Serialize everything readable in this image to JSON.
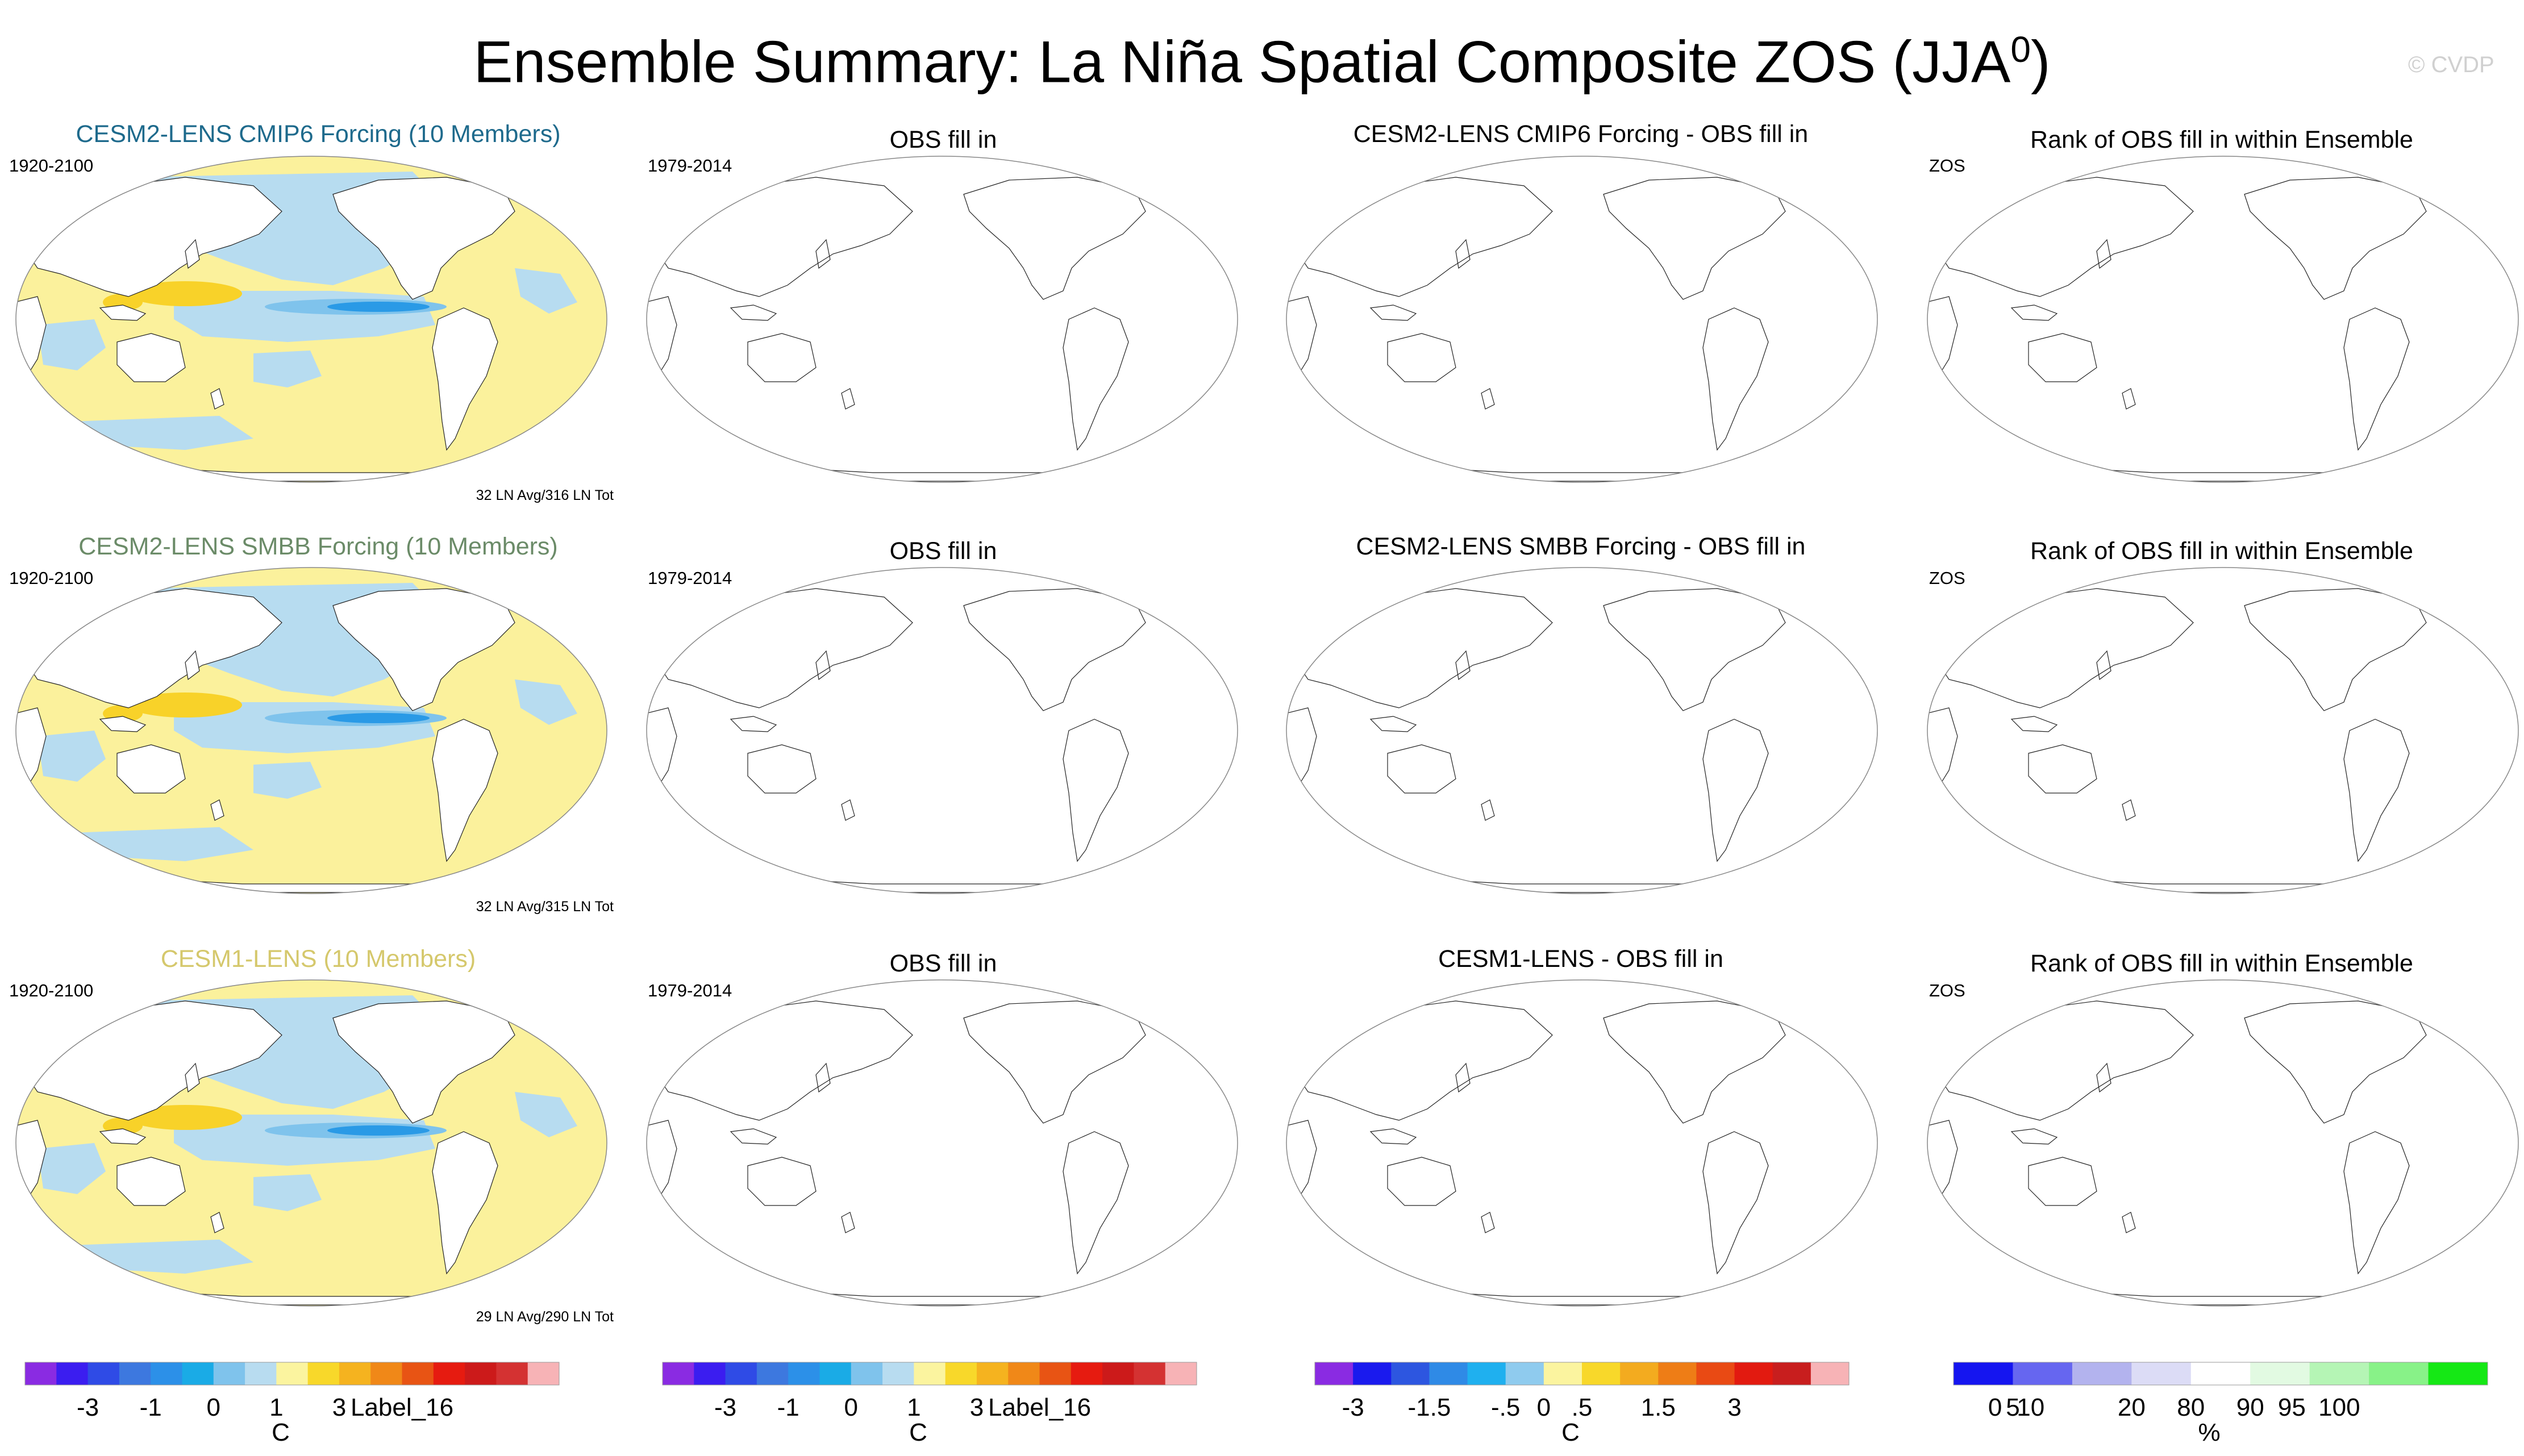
{
  "title": {
    "main": "Ensemble Summary: La Niña Spatial Composite ZOS (JJA",
    "sup": "0",
    "close": ")"
  },
  "watermark": "© CVDP",
  "colors": {
    "land": "#ffffff",
    "ocean_blue": "#b7dcf0",
    "ocean_yellow": "#fbf19c",
    "warm": "#f8d229",
    "deep_blue": "#2a9ae6",
    "coast": "#222222",
    "title_row1": "#1e6a8c",
    "title_row2": "#6b8b68",
    "title_row3": "#d5c86c"
  },
  "rows": [
    {
      "model_title": "CESM2-LENS CMIP6 Forcing (10 Members)",
      "model_period": "1920-2100",
      "model_counts": "32 LN Avg/316 LN Tot",
      "obs_title": "OBS fill in",
      "obs_period": "1979-2014",
      "diff_title": "CESM2-LENS CMIP6 Forcing - OBS fill in",
      "rank_title": "Rank of OBS fill in within Ensemble",
      "rank_label": "ZOS"
    },
    {
      "model_title": "CESM2-LENS SMBB Forcing (10 Members)",
      "model_period": "1920-2100",
      "model_counts": "32 LN Avg/315 LN Tot",
      "obs_title": "OBS fill in",
      "obs_period": "1979-2014",
      "diff_title": "CESM2-LENS SMBB Forcing - OBS fill in",
      "rank_title": "Rank of OBS fill in within Ensemble",
      "rank_label": "ZOS"
    },
    {
      "model_title": "CESM1-LENS (10 Members)",
      "model_period": "1920-2100",
      "model_counts": "29 LN Avg/290 LN Tot",
      "obs_title": "OBS fill in",
      "obs_period": "1979-2014",
      "diff_title": "CESM1-LENS - OBS fill in",
      "rank_title": "Rank of OBS fill in within Ensemble",
      "rank_label": "ZOS"
    }
  ],
  "chart_data": {
    "type": "heatmap",
    "description_units": "C",
    "colorbars": [
      {
        "name": "model",
        "colors": [
          "#8a2be2",
          "#3b1df0",
          "#2f4be6",
          "#3d78df",
          "#2c90e8",
          "#1aabe6",
          "#7fc3ec",
          "#b8dcf0",
          "#fbf49f",
          "#f8d82a",
          "#f5b31f",
          "#f08818",
          "#e85414",
          "#e61b10",
          "#cc1a1a",
          "#d43232",
          "#f7b3b6"
        ],
        "tick_labels": [
          "-3",
          "-1",
          "0",
          "1",
          "3",
          "Label_16"
        ],
        "tick_bins": [
          2,
          4,
          6,
          8,
          10,
          12
        ],
        "unit": "C"
      },
      {
        "name": "obs",
        "colors": [
          "#8a2be2",
          "#3b1df0",
          "#2f4be6",
          "#3d78df",
          "#2c90e8",
          "#1aabe6",
          "#7fc3ec",
          "#b8dcf0",
          "#fbf49f",
          "#f8d82a",
          "#f5b31f",
          "#f08818",
          "#e85414",
          "#e61b10",
          "#cc1a1a",
          "#d43232",
          "#f7b3b6"
        ],
        "tick_labels": [
          "-3",
          "-1",
          "0",
          "1",
          "3",
          "Label_16"
        ],
        "tick_bins": [
          2,
          4,
          6,
          8,
          10,
          12
        ],
        "unit": "C"
      },
      {
        "name": "difference",
        "colors": [
          "#8a2be2",
          "#1a1aee",
          "#2d56e0",
          "#2f8ae6",
          "#1fb0ef",
          "#8fcbee",
          "#fbf49f",
          "#f8d82a",
          "#f3ab1f",
          "#ee7d16",
          "#e94a14",
          "#e21a10",
          "#c81e1e",
          "#f7b3b6"
        ],
        "tick_labels": [
          "-3",
          "-1.5",
          "-.5",
          "0",
          ".5",
          "1.5",
          "3"
        ],
        "tick_bins": [
          1,
          3,
          5,
          6,
          7,
          9,
          11
        ],
        "unit": "C"
      },
      {
        "name": "rank",
        "colors": [
          "#1515f0",
          "#6666f0",
          "#b3b3ee",
          "#dcdcf6",
          "#ffffff",
          "#e2fae2",
          "#b5f5b5",
          "#88f288",
          "#15e815"
        ],
        "tick_labels": [
          "0",
          "5",
          "10",
          "20",
          "80",
          "90",
          "95",
          "100"
        ],
        "tick_bins": [
          0.7,
          1,
          1.3,
          3,
          4,
          5,
          5.7,
          6.5
        ],
        "unit": "%"
      }
    ]
  }
}
